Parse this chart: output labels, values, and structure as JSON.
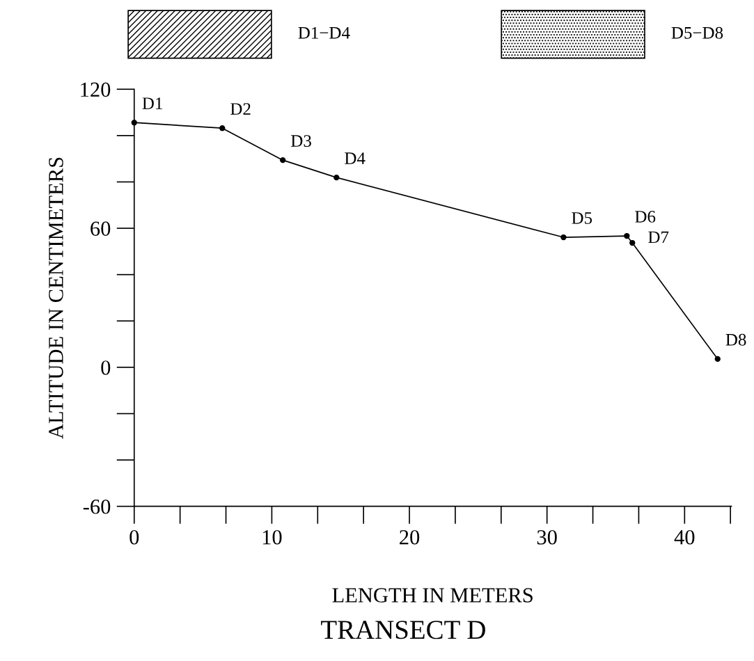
{
  "chart_data": {
    "type": "line",
    "title": "TRANSECT D",
    "xlabel": "LENGTH IN METERS",
    "ylabel": "ALTITUDE IN CENTIMETERS",
    "x": [
      0,
      6.4,
      10.8,
      14.7,
      31.2,
      35.8,
      36.2,
      42.4
    ],
    "series": [
      {
        "color": "#000000",
        "values": [
          105.6,
          103.2,
          89.4,
          81.9,
          56.1,
          56.7,
          53.7,
          3.6
        ]
      }
    ],
    "marker": "circle",
    "line_style": "solid",
    "xlim": [
      0,
      43.4
    ],
    "xticks": [
      0,
      10,
      20,
      30,
      40
    ],
    "ylim": [
      -60,
      120
    ],
    "yticks": [
      -60,
      0,
      60,
      120
    ],
    "grid": false,
    "annotations": [
      {
        "text": "D1",
        "x": 0,
        "y": 105.6
      },
      {
        "text": "D2",
        "x": 6.4,
        "y": 103.2
      },
      {
        "text": "D3",
        "x": 10.8,
        "y": 89.4
      },
      {
        "text": "D4",
        "x": 14.7,
        "y": 81.9
      },
      {
        "text": "D5",
        "x": 31.2,
        "y": 56.1
      },
      {
        "text": "D6",
        "x": 35.8,
        "y": 56.7
      },
      {
        "text": "D7",
        "x": 36.2,
        "y": 53.7
      },
      {
        "text": "D8",
        "x": 42.4,
        "y": 3.6
      },
      "D1−D4",
      "D5−D8"
    ]
  }
}
